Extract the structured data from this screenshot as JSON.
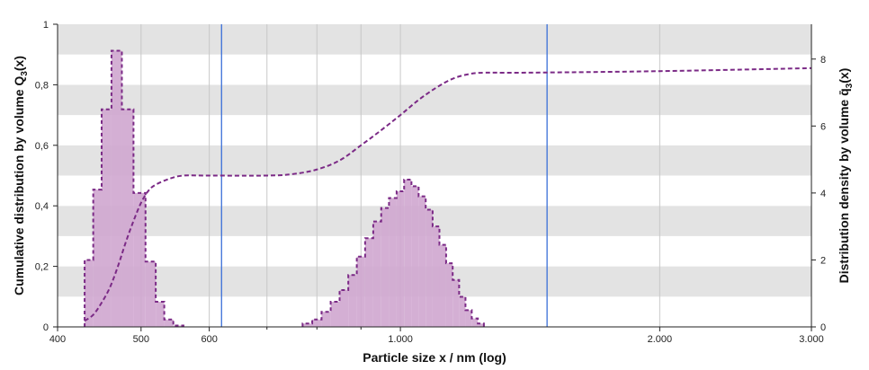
{
  "chart_data": {
    "type": "bar",
    "xlabel": "Particle size x / nm (log)",
    "ylabel_left": {
      "text": "Cumulative distribution by volume Q",
      "sub": "3",
      "suffix": "(x)"
    },
    "ylabel_right": {
      "text": "Distribution density by volume q̄",
      "sub": "3",
      "suffix": "(x)"
    },
    "x_scale": "log",
    "xlim": [
      400,
      3000
    ],
    "x_ticks_labeled": [
      {
        "value": 400,
        "label": "400"
      },
      {
        "value": 500,
        "label": "500"
      },
      {
        "value": 600,
        "label": "600"
      },
      {
        "value": 1000,
        "label": "1.000"
      },
      {
        "value": 2000,
        "label": "2.000"
      },
      {
        "value": 3000,
        "label": "3.000"
      }
    ],
    "x_minor_ticks": [
      700,
      800,
      900
    ],
    "ylim_left": [
      0,
      1
    ],
    "y_ticks_left": [
      {
        "value": 0,
        "label": "0"
      },
      {
        "value": 0.2,
        "label": "0,2"
      },
      {
        "value": 0.4,
        "label": "0,4"
      },
      {
        "value": 0.6,
        "label": "0,6"
      },
      {
        "value": 0.8,
        "label": "0,8"
      },
      {
        "value": 1,
        "label": "1"
      }
    ],
    "ylim_right": [
      0,
      9.04
    ],
    "y_ticks_right": [
      {
        "value": 0,
        "label": "0"
      },
      {
        "value": 2,
        "label": "2"
      },
      {
        "value": 4,
        "label": "4"
      },
      {
        "value": 6,
        "label": "6"
      },
      {
        "value": 8,
        "label": "8"
      }
    ],
    "grid": "horizontal bands alternating grey/white every 0.1, vertical gridlines at x ticks",
    "vertical_markers": [
      {
        "x": 620,
        "color": "#3a6fd8"
      },
      {
        "x": 1480,
        "color": "#3a6fd8"
      }
    ],
    "colors": {
      "fill": "#cfa6cf",
      "stroke": "#7b2a86",
      "band": "#e3e3e3",
      "marker": "#3a6fd8"
    },
    "series": [
      {
        "kind": "density_histogram",
        "axis": "right",
        "bins": [
          {
            "x0": 430,
            "x1": 440,
            "value": 2.0
          },
          {
            "x0": 440,
            "x1": 450,
            "value": 4.1
          },
          {
            "x0": 450,
            "x1": 462,
            "value": 6.5
          },
          {
            "x0": 462,
            "x1": 475,
            "value": 8.25
          },
          {
            "x0": 475,
            "x1": 490,
            "value": 6.5
          },
          {
            "x0": 490,
            "x1": 506,
            "value": 4.0
          },
          {
            "x0": 506,
            "x1": 520,
            "value": 1.95
          },
          {
            "x0": 520,
            "x1": 532,
            "value": 0.75
          },
          {
            "x0": 532,
            "x1": 545,
            "value": 0.22
          },
          {
            "x0": 545,
            "x1": 560,
            "value": 0.04
          },
          {
            "x0": 770,
            "x1": 790,
            "value": 0.1
          },
          {
            "x0": 790,
            "x1": 810,
            "value": 0.22
          },
          {
            "x0": 810,
            "x1": 830,
            "value": 0.45
          },
          {
            "x0": 830,
            "x1": 850,
            "value": 0.75
          },
          {
            "x0": 850,
            "x1": 870,
            "value": 1.1
          },
          {
            "x0": 870,
            "x1": 890,
            "value": 1.55
          },
          {
            "x0": 890,
            "x1": 910,
            "value": 2.1
          },
          {
            "x0": 910,
            "x1": 930,
            "value": 2.65
          },
          {
            "x0": 930,
            "x1": 950,
            "value": 3.15
          },
          {
            "x0": 950,
            "x1": 970,
            "value": 3.55
          },
          {
            "x0": 970,
            "x1": 990,
            "value": 3.85
          },
          {
            "x0": 990,
            "x1": 1010,
            "value": 4.05
          },
          {
            "x0": 1010,
            "x1": 1030,
            "value": 4.4
          },
          {
            "x0": 1030,
            "x1": 1050,
            "value": 4.2
          },
          {
            "x0": 1050,
            "x1": 1070,
            "value": 3.9
          },
          {
            "x0": 1070,
            "x1": 1090,
            "value": 3.5
          },
          {
            "x0": 1090,
            "x1": 1110,
            "value": 3.0
          },
          {
            "x0": 1110,
            "x1": 1130,
            "value": 2.45
          },
          {
            "x0": 1130,
            "x1": 1150,
            "value": 1.9
          },
          {
            "x0": 1150,
            "x1": 1170,
            "value": 1.4
          },
          {
            "x0": 1170,
            "x1": 1190,
            "value": 0.9
          },
          {
            "x0": 1190,
            "x1": 1210,
            "value": 0.5
          },
          {
            "x0": 1210,
            "x1": 1230,
            "value": 0.25
          },
          {
            "x0": 1230,
            "x1": 1250,
            "value": 0.1
          }
        ]
      },
      {
        "kind": "cumulative_curve",
        "axis": "left",
        "points": [
          [
            430,
            0.02
          ],
          [
            440,
            0.04
          ],
          [
            450,
            0.08
          ],
          [
            460,
            0.13
          ],
          [
            470,
            0.2
          ],
          [
            480,
            0.28
          ],
          [
            490,
            0.35
          ],
          [
            500,
            0.41
          ],
          [
            510,
            0.45
          ],
          [
            520,
            0.47
          ],
          [
            540,
            0.49
          ],
          [
            560,
            0.5
          ],
          [
            600,
            0.5
          ],
          [
            700,
            0.5
          ],
          [
            750,
            0.505
          ],
          [
            800,
            0.52
          ],
          [
            850,
            0.55
          ],
          [
            900,
            0.6
          ],
          [
            950,
            0.65
          ],
          [
            1000,
            0.7
          ],
          [
            1050,
            0.75
          ],
          [
            1100,
            0.79
          ],
          [
            1150,
            0.82
          ],
          [
            1200,
            0.835
          ],
          [
            1250,
            0.84
          ],
          [
            1400,
            0.84
          ],
          [
            2000,
            0.845
          ],
          [
            3000,
            0.855
          ]
        ]
      }
    ]
  }
}
